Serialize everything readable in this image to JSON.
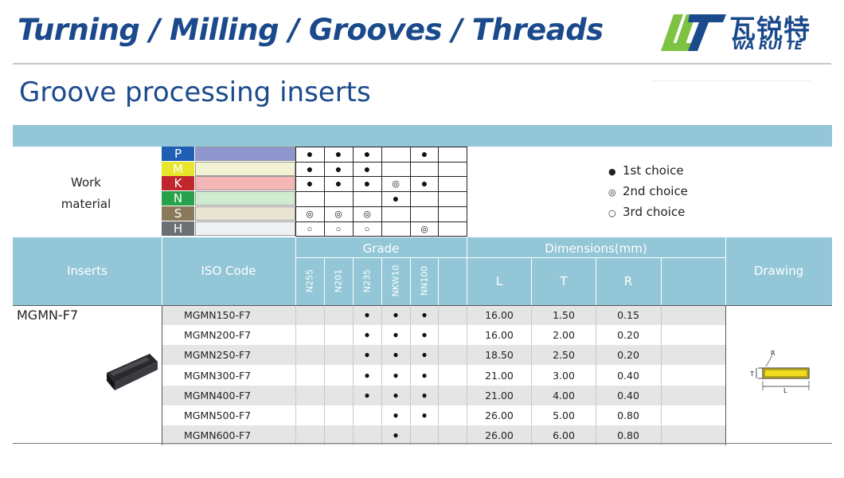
{
  "header": {
    "banner": "Turning / Milling / Grooves / Threads",
    "logo_cn": "瓦锐特",
    "logo_en": "WA RUI TE",
    "section_title": "Groove processing inserts"
  },
  "work_material": {
    "label_line1": "Work",
    "label_line2": "material",
    "rows": [
      {
        "letter": "P",
        "letter_color": "#1f5fb3",
        "bar_color": "#8f95cf",
        "marks": [
          "●",
          "●",
          "●",
          "",
          "●",
          ""
        ]
      },
      {
        "letter": "M",
        "letter_color": "#e8e62a",
        "bar_color": "#f3f3d3",
        "marks": [
          "●",
          "●",
          "●",
          "",
          "",
          ""
        ]
      },
      {
        "letter": "K",
        "letter_color": "#c0272d",
        "bar_color": "#f5b6b6",
        "marks": [
          "●",
          "●",
          "●",
          "◎",
          "●",
          ""
        ]
      },
      {
        "letter": "N",
        "letter_color": "#27a24a",
        "bar_color": "#cfeccf",
        "marks": [
          "",
          "",
          "",
          "●",
          "",
          ""
        ]
      },
      {
        "letter": "S",
        "letter_color": "#8a7a5a",
        "bar_color": "#e8e3d3",
        "marks": [
          "◎",
          "◎",
          "◎",
          "",
          "",
          ""
        ]
      },
      {
        "letter": "H",
        "letter_color": "#6b7075",
        "bar_color": "#eef0f1",
        "marks": [
          "○",
          "○",
          "○",
          "",
          "◎",
          ""
        ]
      }
    ]
  },
  "legend": [
    {
      "symbol": "●",
      "label": "1st choice"
    },
    {
      "symbol": "◎",
      "label": "2nd choice"
    },
    {
      "symbol": "○",
      "label": "3rd choice"
    }
  ],
  "table_head": {
    "inserts": "Inserts",
    "iso_code": "ISO Code",
    "grade": "Grade",
    "grades": [
      "N255",
      "N201",
      "N235",
      "NKW10",
      "NN100"
    ],
    "dimensions": "Dimensions(mm)",
    "dim_cols": [
      "L",
      "T",
      "R"
    ],
    "drawing": "Drawing"
  },
  "series": "MGMN-F7",
  "rows": [
    {
      "iso": "MGMN150-F7",
      "marks": [
        "",
        "",
        "●",
        "●",
        "●",
        ""
      ],
      "L": "16.00",
      "T": "1.50",
      "R": "0.15"
    },
    {
      "iso": "MGMN200-F7",
      "marks": [
        "",
        "",
        "●",
        "●",
        "●",
        ""
      ],
      "L": "16.00",
      "T": "2.00",
      "R": "0.20"
    },
    {
      "iso": "MGMN250-F7",
      "marks": [
        "",
        "",
        "●",
        "●",
        "●",
        ""
      ],
      "L": "18.50",
      "T": "2.50",
      "R": "0.20"
    },
    {
      "iso": "MGMN300-F7",
      "marks": [
        "",
        "",
        "●",
        "●",
        "●",
        ""
      ],
      "L": "21.00",
      "T": "3.00",
      "R": "0.40"
    },
    {
      "iso": "MGMN400-F7",
      "marks": [
        "",
        "",
        "●",
        "●",
        "●",
        ""
      ],
      "L": "21.00",
      "T": "4.00",
      "R": "0.40"
    },
    {
      "iso": "MGMN500-F7",
      "marks": [
        "",
        "",
        "",
        "●",
        "●",
        ""
      ],
      "L": "26.00",
      "T": "5.00",
      "R": "0.80"
    },
    {
      "iso": "MGMN600-F7",
      "marks": [
        "",
        "",
        "",
        "●",
        "",
        ""
      ],
      "L": "26.00",
      "T": "6.00",
      "R": "0.80"
    }
  ],
  "drawing_labels": {
    "r": "R",
    "t": "T",
    "l": "L"
  },
  "colors": {
    "accent": "#1b4a8c",
    "header_band": "#93c6d6",
    "logo_green": "#7dc242"
  }
}
